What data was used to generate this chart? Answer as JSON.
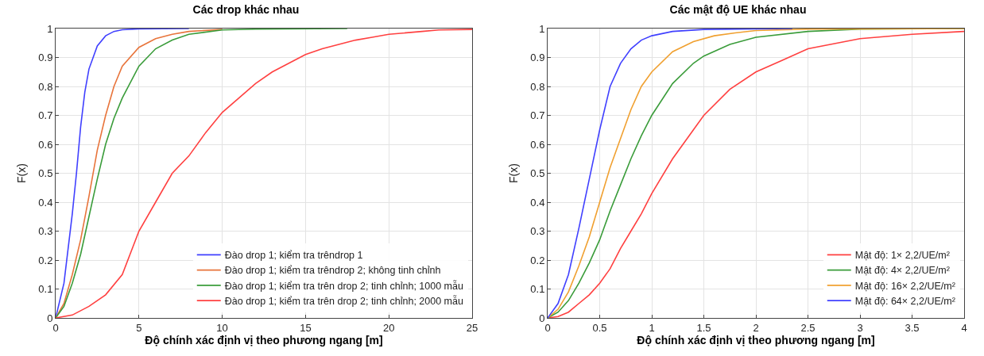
{
  "chart_data": [
    {
      "type": "line",
      "title": "Các drop khác nhau",
      "xlabel": "Độ chính xác định vị theo phương ngang [m]",
      "ylabel": "F(x)",
      "xlim": [
        0,
        25
      ],
      "xticks": [
        0,
        5,
        10,
        15,
        20,
        25
      ],
      "ylim": [
        0,
        1
      ],
      "yticks": [
        0,
        0.1,
        0.2,
        0.3,
        0.4,
        0.5,
        0.6,
        0.7,
        0.8,
        0.9,
        1
      ],
      "grid": true,
      "legend": "bottom right",
      "marker": "none",
      "line_style": "solid",
      "series": [
        {
          "name": "Đào drop 1; kiểm tra trêndrop 1",
          "color": "#4040ff",
          "x": [
            0,
            0.5,
            1,
            1.25,
            1.5,
            1.75,
            2,
            2.5,
            3,
            3.5,
            4,
            5,
            8
          ],
          "values": [
            0,
            0.12,
            0.36,
            0.5,
            0.66,
            0.78,
            0.86,
            0.94,
            0.975,
            0.99,
            0.996,
            0.999,
            1
          ]
        },
        {
          "name": "Đào drop 1; kiểm tra trêndrop 2; không tinh chỉnh",
          "color": "#e8743b",
          "x": [
            0,
            0.5,
            1,
            1.5,
            2,
            2.5,
            3,
            3.5,
            4,
            5,
            6,
            7,
            8,
            10
          ],
          "values": [
            0,
            0.05,
            0.15,
            0.27,
            0.42,
            0.58,
            0.7,
            0.8,
            0.87,
            0.935,
            0.965,
            0.98,
            0.99,
            0.997
          ]
        },
        {
          "name": "Đào drop 1; kiểm tra trên drop 2; tinh chỉnh; 1000 mẫu",
          "color": "#3a9c3a",
          "x": [
            0,
            0.5,
            1,
            1.5,
            2,
            2.5,
            3,
            3.5,
            4,
            5,
            6,
            7,
            8,
            10,
            12,
            17.5
          ],
          "values": [
            0,
            0.04,
            0.12,
            0.22,
            0.35,
            0.48,
            0.6,
            0.69,
            0.76,
            0.87,
            0.93,
            0.96,
            0.98,
            0.995,
            0.998,
            1
          ]
        },
        {
          "name": "Đào drop 1; kiểm tra trên drop 2; tinh chỉnh; 2000 mẫu",
          "color": "#ff4040",
          "x": [
            0,
            1,
            2,
            3,
            4,
            5,
            6,
            7,
            8,
            9,
            10,
            11,
            12,
            13,
            14,
            15,
            16,
            17,
            18,
            19,
            20,
            22,
            23,
            25
          ],
          "values": [
            0,
            0.01,
            0.04,
            0.08,
            0.15,
            0.3,
            0.4,
            0.5,
            0.56,
            0.64,
            0.71,
            0.76,
            0.81,
            0.85,
            0.88,
            0.91,
            0.93,
            0.945,
            0.96,
            0.97,
            0.98,
            0.99,
            0.995,
            0.997
          ]
        }
      ]
    },
    {
      "type": "line",
      "title": "Các mật độ UE khác nhau",
      "xlabel": "Độ chính xác định vị theo phương ngang [m]",
      "ylabel": "F(x)",
      "xlim": [
        0,
        4
      ],
      "xticks": [
        0,
        0.5,
        1,
        1.5,
        2,
        2.5,
        3,
        3.5,
        4
      ],
      "ylim": [
        0,
        1
      ],
      "yticks": [
        0,
        0.1,
        0.2,
        0.3,
        0.4,
        0.5,
        0.6,
        0.7,
        0.8,
        0.9,
        1
      ],
      "grid": true,
      "legend": "bottom right",
      "marker": "none",
      "line_style": "solid",
      "series": [
        {
          "name": "Mật độ: 1× 2,2/UE/m²",
          "color": "#ff4040",
          "x": [
            0,
            0.1,
            0.2,
            0.3,
            0.4,
            0.5,
            0.6,
            0.7,
            0.8,
            0.9,
            1,
            1.2,
            1.4,
            1.5,
            1.75,
            2,
            2.25,
            2.5,
            3,
            3.5,
            4
          ],
          "values": [
            0,
            0.005,
            0.02,
            0.05,
            0.08,
            0.12,
            0.17,
            0.24,
            0.3,
            0.36,
            0.43,
            0.55,
            0.65,
            0.7,
            0.79,
            0.85,
            0.89,
            0.93,
            0.965,
            0.98,
            0.99
          ]
        },
        {
          "name": "Mật độ: 4× 2,2/UE/m²",
          "color": "#3a9c3a",
          "x": [
            0,
            0.1,
            0.2,
            0.3,
            0.4,
            0.5,
            0.6,
            0.7,
            0.8,
            0.9,
            1,
            1.2,
            1.4,
            1.5,
            1.75,
            2,
            2.5,
            3,
            4
          ],
          "values": [
            0,
            0.02,
            0.06,
            0.12,
            0.19,
            0.27,
            0.37,
            0.46,
            0.55,
            0.63,
            0.7,
            0.81,
            0.88,
            0.905,
            0.945,
            0.97,
            0.99,
            0.998,
            1
          ]
        },
        {
          "name": "Mật độ: 16× 2,2/UE/m²",
          "color": "#f0a030",
          "x": [
            0,
            0.1,
            0.2,
            0.3,
            0.4,
            0.5,
            0.6,
            0.7,
            0.8,
            0.9,
            1,
            1.2,
            1.4,
            1.6,
            1.8,
            2,
            2.5,
            4
          ],
          "values": [
            0,
            0.03,
            0.09,
            0.18,
            0.28,
            0.4,
            0.52,
            0.62,
            0.72,
            0.8,
            0.85,
            0.92,
            0.955,
            0.975,
            0.985,
            0.993,
            0.998,
            1
          ]
        },
        {
          "name": "Mật độ: 64× 2,2/UE/m²",
          "color": "#4040ff",
          "x": [
            0,
            0.1,
            0.2,
            0.3,
            0.4,
            0.5,
            0.6,
            0.7,
            0.8,
            0.9,
            1,
            1.2,
            1.5,
            2.35
          ],
          "values": [
            0,
            0.05,
            0.15,
            0.31,
            0.48,
            0.65,
            0.8,
            0.88,
            0.93,
            0.96,
            0.975,
            0.99,
            0.997,
            1
          ]
        }
      ]
    }
  ]
}
